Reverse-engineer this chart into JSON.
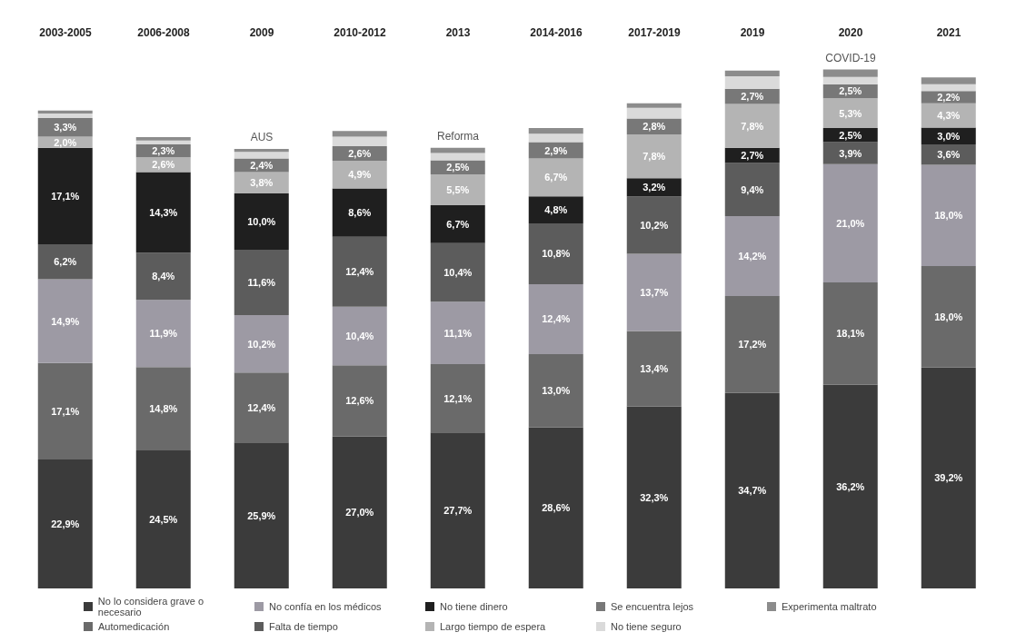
{
  "chart_data": {
    "type": "bar",
    "stacked": true,
    "categories": [
      "2003-2005",
      "2006-2008",
      "2009",
      "2010-2012",
      "2013",
      "2014-2016",
      "2017-2019",
      "2019",
      "2020",
      "2021"
    ],
    "series": [
      {
        "name": "No lo considera grave o necesario",
        "color": "#3b3b3b",
        "values": [
          22.9,
          24.5,
          25.9,
          27.0,
          27.7,
          28.6,
          32.3,
          34.7,
          36.2,
          39.2
        ],
        "value_labels": [
          "22,9%",
          "24,5%",
          "25,9%",
          "27,0%",
          "27,7%",
          "28,6%",
          "32,3%",
          "34,7%",
          "36,2%",
          "39,2%"
        ]
      },
      {
        "name": "Automedicación",
        "color": "#6a6a6a",
        "values": [
          17.1,
          14.8,
          12.4,
          12.6,
          12.1,
          13.0,
          13.4,
          17.2,
          18.1,
          18.0
        ],
        "value_labels": [
          "17,1%",
          "14,8%",
          "12,4%",
          "12,6%",
          "12,1%",
          "13,0%",
          "13,4%",
          "17,2%",
          "18,1%",
          "18,0%"
        ]
      },
      {
        "name": "No confía en los médicos",
        "color": "#9d9aa4",
        "values": [
          14.9,
          11.9,
          10.2,
          10.4,
          11.1,
          12.4,
          13.7,
          14.2,
          21.0,
          18.0
        ],
        "value_labels": [
          "14,9%",
          "11,9%",
          "10,2%",
          "10,4%",
          "11,1%",
          "12,4%",
          "13,7%",
          "14,2%",
          "21,0%",
          "18,0%"
        ]
      },
      {
        "name": "Falta de tiempo",
        "color": "#5c5c5c",
        "values": [
          6.2,
          8.4,
          11.6,
          12.4,
          10.4,
          10.8,
          10.2,
          9.4,
          3.9,
          3.6
        ],
        "value_labels": [
          "6,2%",
          "8,4%",
          "11,6%",
          "12,4%",
          "10,4%",
          "10,8%",
          "10,2%",
          "9,4%",
          "3,9%",
          "3,6%"
        ]
      },
      {
        "name": "No tiene dinero",
        "color": "#1f1f1f",
        "values": [
          17.1,
          14.3,
          10.0,
          8.6,
          6.7,
          4.8,
          3.2,
          2.7,
          2.5,
          3.0
        ],
        "value_labels": [
          "17,1%",
          "14,3%",
          "10,0%",
          "8,6%",
          "6,7%",
          "4,8%",
          "3,2%",
          "2,7%",
          "2,5%",
          "3,0%"
        ]
      },
      {
        "name": "Largo tiempo de espera",
        "color": "#b4b4b4",
        "values": [
          2.0,
          2.6,
          3.8,
          4.9,
          5.5,
          6.7,
          7.8,
          7.8,
          5.3,
          4.3
        ],
        "value_labels": [
          "2,0%",
          "2,6%",
          "3,8%",
          "4,9%",
          "5,5%",
          "6,7%",
          "7,8%",
          "7,8%",
          "5,3%",
          "4,3%"
        ]
      },
      {
        "name": "Se encuentra lejos",
        "color": "#787878",
        "values": [
          3.3,
          2.3,
          2.4,
          2.6,
          2.5,
          2.9,
          2.8,
          2.7,
          2.5,
          2.2
        ],
        "value_labels": [
          "3,3%",
          "2,3%",
          "2,4%",
          "2,6%",
          "2,5%",
          "2,9%",
          "2,8%",
          "2,7%",
          "2,5%",
          "2,2%"
        ]
      },
      {
        "name": "No tiene seguro",
        "color": "#dadada",
        "values": [
          0.8,
          0.7,
          1.2,
          1.7,
          1.3,
          1.5,
          1.9,
          2.2,
          1.3,
          1.2
        ]
      },
      {
        "name": "Experimenta maltrato",
        "color": "#8c8c8c",
        "values": [
          0.5,
          0.6,
          0.5,
          1.0,
          0.9,
          1.0,
          0.8,
          1.0,
          1.3,
          1.2
        ]
      }
    ],
    "annotations": [
      {
        "text": "AUS",
        "x": "2009",
        "y": 78.0
      },
      {
        "text": "Reforma",
        "x": "2013",
        "y": 78.2
      },
      {
        "text": "COVID-19",
        "x": "2020",
        "y": 92.1
      }
    ],
    "legend": "bottom"
  }
}
